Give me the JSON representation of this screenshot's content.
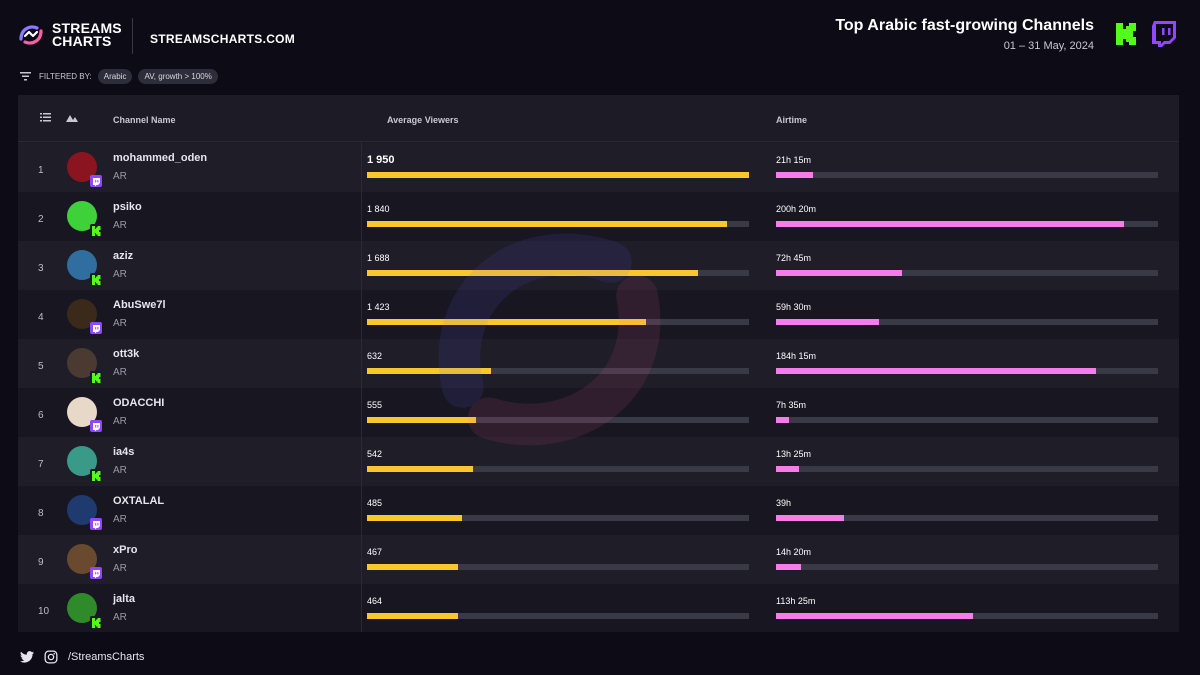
{
  "brand": {
    "logo_line1": "STREAMS",
    "logo_line2": "CHARTS",
    "site": "STREAMSCHARTS.COM"
  },
  "header": {
    "title": "Top Arabic fast-growing Channels",
    "date_range": "01 – 31 May, 2024"
  },
  "filters": {
    "label": "FILTERED BY:",
    "chips": [
      "Arabic",
      "AV, growth > 100%"
    ]
  },
  "columns": {
    "channel": "Channel Name",
    "viewers": "Average Viewers",
    "airtime": "Airtime"
  },
  "colors": {
    "viewers_bar": "#f7c72c",
    "airtime_bar": "#f57ce9",
    "kick": "#53fc18",
    "twitch": "#9146ff"
  },
  "footer": {
    "handle": "/StreamsCharts"
  },
  "chart_data": {
    "type": "table",
    "title": "Top Arabic fast-growing Channels",
    "period": "01 – 31 May, 2024",
    "columns": [
      "#",
      "Platform",
      "Channel Name",
      "Average Viewers",
      "Airtime"
    ],
    "av_max": 1950,
    "airtime_max_hours": 220,
    "rows": [
      {
        "rank": "1",
        "name": "mohammed_oden",
        "lang": "AR",
        "platform": "twitch",
        "av": 1950,
        "av_label": "1 950",
        "airtime": "21h 15m",
        "airtime_hours": 21.25,
        "avatar": "#8a1520"
      },
      {
        "rank": "2",
        "name": "psiko",
        "lang": "AR",
        "platform": "kick",
        "av": 1840,
        "av_label": "1 840",
        "airtime": "200h 20m",
        "airtime_hours": 200.33,
        "avatar": "#3fd13a"
      },
      {
        "rank": "3",
        "name": "aziz",
        "lang": "AR",
        "platform": "kick",
        "av": 1688,
        "av_label": "1 688",
        "airtime": "72h 45m",
        "airtime_hours": 72.75,
        "avatar": "#2f6e9e"
      },
      {
        "rank": "4",
        "name": "AbuSwe7l",
        "lang": "AR",
        "platform": "twitch",
        "av": 1423,
        "av_label": "1 423",
        "airtime": "59h 30m",
        "airtime_hours": 59.5,
        "avatar": "#3b2a1a"
      },
      {
        "rank": "5",
        "name": "ott3k",
        "lang": "AR",
        "platform": "kick",
        "av": 632,
        "av_label": "632",
        "airtime": "184h 15m",
        "airtime_hours": 184.25,
        "avatar": "#4a3a32"
      },
      {
        "rank": "6",
        "name": "ODACCHI",
        "lang": "AR",
        "platform": "twitch",
        "av": 555,
        "av_label": "555",
        "airtime": "7h 35m",
        "airtime_hours": 7.58,
        "avatar": "#e8d8c8"
      },
      {
        "rank": "7",
        "name": "ia4s",
        "lang": "AR",
        "platform": "kick",
        "av": 542,
        "av_label": "542",
        "airtime": "13h 25m",
        "airtime_hours": 13.42,
        "avatar": "#3a9a8a"
      },
      {
        "rank": "8",
        "name": "OXTALAL",
        "lang": "AR",
        "platform": "twitch",
        "av": 485,
        "av_label": "485",
        "airtime": "39h",
        "airtime_hours": 39,
        "avatar": "#1e3a6e"
      },
      {
        "rank": "9",
        "name": "xPro",
        "lang": "AR",
        "platform": "twitch",
        "av": 467,
        "av_label": "467",
        "airtime": "14h 20m",
        "airtime_hours": 14.33,
        "avatar": "#6a4a2e"
      },
      {
        "rank": "10",
        "name": "jalta",
        "lang": "AR",
        "platform": "kick",
        "av": 464,
        "av_label": "464",
        "airtime": "113h 25m",
        "airtime_hours": 113.42,
        "avatar": "#2f8a2a"
      }
    ]
  }
}
